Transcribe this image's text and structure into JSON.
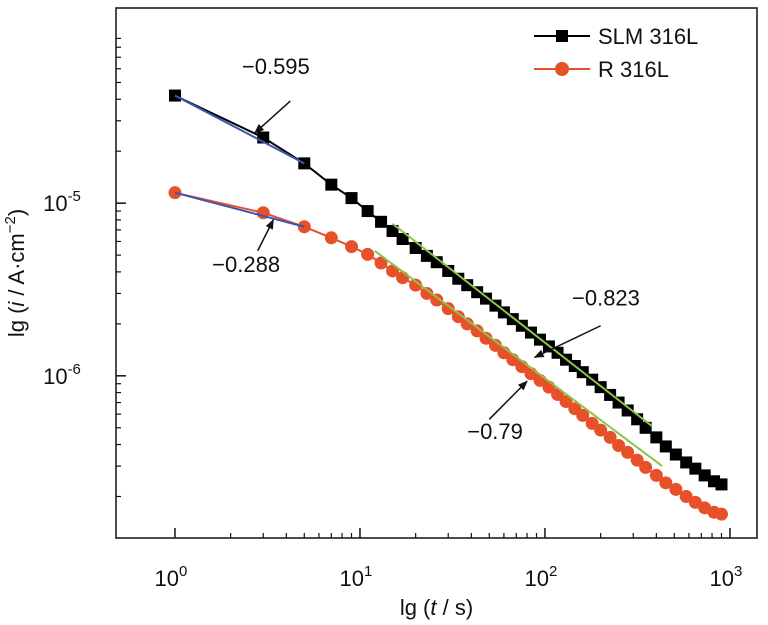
{
  "chart_data": {
    "type": "line",
    "xscale": "log",
    "yscale": "log",
    "xlim": [
      0.48,
      1400
    ],
    "ylim": [
      1.15e-07,
      0.000135
    ],
    "xticks": [
      {
        "value": 1,
        "base": "10",
        "exp": "0"
      },
      {
        "value": 10,
        "base": "10",
        "exp": "1"
      },
      {
        "value": 100,
        "base": "10",
        "exp": "2"
      },
      {
        "value": 1000,
        "base": "10",
        "exp": "3"
      }
    ],
    "yticks": [
      {
        "value": 1e-05,
        "base": "10",
        "exp": "-5"
      },
      {
        "value": 1e-06,
        "base": "10",
        "exp": "-6"
      }
    ],
    "xlabel": {
      "pre": "lg (",
      "var": "t",
      "post": " / s)"
    },
    "ylabel": {
      "pre": "lg (",
      "var": "i",
      "post": " / A·cm",
      "sup": "−2",
      "end": ")"
    },
    "legend": {
      "position": "top-right"
    },
    "series": [
      {
        "name": "SLM 316L",
        "color": "#000000",
        "marker": "square",
        "x": [
          1,
          3,
          5,
          7,
          9,
          11,
          13,
          15,
          17,
          20,
          23,
          26,
          30,
          34,
          38,
          43,
          48,
          54,
          60,
          67,
          75,
          84,
          94,
          105,
          117,
          130,
          145,
          160,
          180,
          200,
          225,
          250,
          280,
          315,
          350,
          400,
          450,
          510,
          580,
          650,
          730,
          820,
          900
        ],
        "y": [
          4.2e-05,
          2.4e-05,
          1.7e-05,
          1.28e-05,
          1.07e-05,
          9e-06,
          7.8e-06,
          6.9e-06,
          6.2e-06,
          5.5e-06,
          4.95e-06,
          4.55e-06,
          4.05e-06,
          3.65e-06,
          3.35e-06,
          3.05e-06,
          2.8e-06,
          2.55e-06,
          2.33e-06,
          2.13e-06,
          1.95e-06,
          1.78e-06,
          1.62e-06,
          1.48e-06,
          1.36e-06,
          1.24e-06,
          1.14e-06,
          1.05e-06,
          9.5e-07,
          8.6e-07,
          7.75e-07,
          7e-07,
          6.3e-07,
          5.6e-07,
          5e-07,
          4.4e-07,
          3.9e-07,
          3.5e-07,
          3.15e-07,
          2.9e-07,
          2.65e-07,
          2.45e-07,
          2.35e-07
        ]
      },
      {
        "name": "R 316L",
        "color": "#e8502a",
        "marker": "circle",
        "x": [
          1,
          3,
          5,
          7,
          9,
          11,
          13,
          15,
          17,
          20,
          23,
          26,
          30,
          34,
          38,
          43,
          48,
          54,
          60,
          67,
          75,
          84,
          94,
          105,
          117,
          130,
          145,
          160,
          180,
          200,
          225,
          250,
          280,
          315,
          350,
          400,
          450,
          510,
          580,
          650,
          730,
          820,
          900
        ],
        "y": [
          1.15e-05,
          8.8e-06,
          7.3e-06,
          6.3e-06,
          5.6e-06,
          5.05e-06,
          4.5e-06,
          4.05e-06,
          3.7e-06,
          3.35e-06,
          3e-06,
          2.75e-06,
          2.45e-06,
          2.2e-06,
          2e-06,
          1.82e-06,
          1.65e-06,
          1.5e-06,
          1.36e-06,
          1.24e-06,
          1.13e-06,
          1.03e-06,
          9.4e-07,
          8.6e-07,
          7.8e-07,
          7.1e-07,
          6.45e-07,
          5.9e-07,
          5.3e-07,
          4.85e-07,
          4.4e-07,
          3.95e-07,
          3.6e-07,
          3.25e-07,
          2.95e-07,
          2.65e-07,
          2.4e-07,
          2.2e-07,
          2e-07,
          1.85e-07,
          1.72e-07,
          1.62e-07,
          1.58e-07
        ]
      }
    ],
    "fits": [
      {
        "slope": "−0.595",
        "color": "#3a55b4",
        "x1": 1,
        "y1": 4.2e-05,
        "x2": 5,
        "y2": 1.7e-05
      },
      {
        "slope": "−0.288",
        "color": "#3a55b4",
        "x1": 1,
        "y1": 1.15e-05,
        "x2": 5,
        "y2": 7.3e-06
      },
      {
        "slope": "−0.823",
        "color": "#8bc34a",
        "x1": 15,
        "y1": 7.6e-06,
        "x2": 380,
        "y2": 5.1e-07
      },
      {
        "slope": "−0.79",
        "color": "#8bc34a",
        "x1": 12,
        "y1": 5.3e-06,
        "x2": 430,
        "y2": 3e-07
      }
    ],
    "annotations": [
      {
        "text": "−0.595",
        "label_x": 2.3,
        "label_y": 5.6e-05,
        "anchor": "start",
        "arrow_from_x": 4.2,
        "arrow_from_y": 3.9e-05,
        "arrow_to_x": 2.7,
        "arrow_to_y": 2.55e-05
      },
      {
        "text": "−0.288",
        "label_x": 3.7,
        "label_y": 4e-06,
        "anchor": "end",
        "arrow_from_x": 2.8,
        "arrow_from_y": 5.3e-06,
        "arrow_to_x": 3.4,
        "arrow_to_y": 8e-06
      },
      {
        "text": "−0.823",
        "label_x": 140,
        "label_y": 2.55e-06,
        "anchor": "start",
        "arrow_from_x": 200,
        "arrow_from_y": 1.95e-06,
        "arrow_to_x": 88,
        "arrow_to_y": 1.28e-06
      },
      {
        "text": "−0.79",
        "label_x": 38,
        "label_y": 4.3e-07,
        "anchor": "start",
        "arrow_from_x": 50,
        "arrow_from_y": 5.6e-07,
        "arrow_to_x": 80,
        "arrow_to_y": 9.3e-07
      }
    ]
  }
}
